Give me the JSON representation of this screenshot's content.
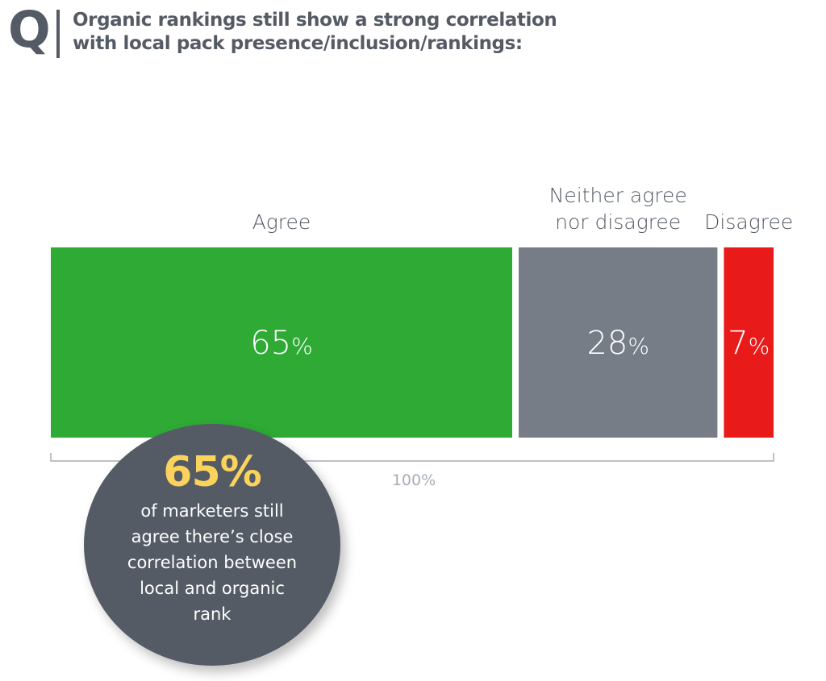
{
  "header": {
    "q_glyph": "Q",
    "title_lines": [
      "Organic rankings still show a strong correlation",
      "with local pack presence/inclusion/rankings:"
    ]
  },
  "chart_data": {
    "type": "bar",
    "orientation": "horizontal-stacked",
    "title": "Organic rankings still show a strong correlation with local pack presence/inclusion/rankings:",
    "categories": [
      "Agree",
      "Neither agree nor disagree",
      "Disagree"
    ],
    "category_label_lines": [
      [
        "Agree"
      ],
      [
        "Neither agree",
        "nor disagree"
      ],
      [
        "Disagree"
      ]
    ],
    "values": [
      65,
      28,
      7
    ],
    "value_labels": [
      "65",
      "28",
      "7"
    ],
    "value_suffix": "%",
    "colors": [
      "#2eaa35",
      "#767d87",
      "#e81a1a"
    ],
    "total": 100,
    "total_label": "100%",
    "xlim": [
      0,
      100
    ]
  },
  "callout": {
    "headline": "65%",
    "lines": [
      "of marketers still",
      "agree there’s close",
      "correlation between",
      "local and organic",
      "rank"
    ]
  }
}
